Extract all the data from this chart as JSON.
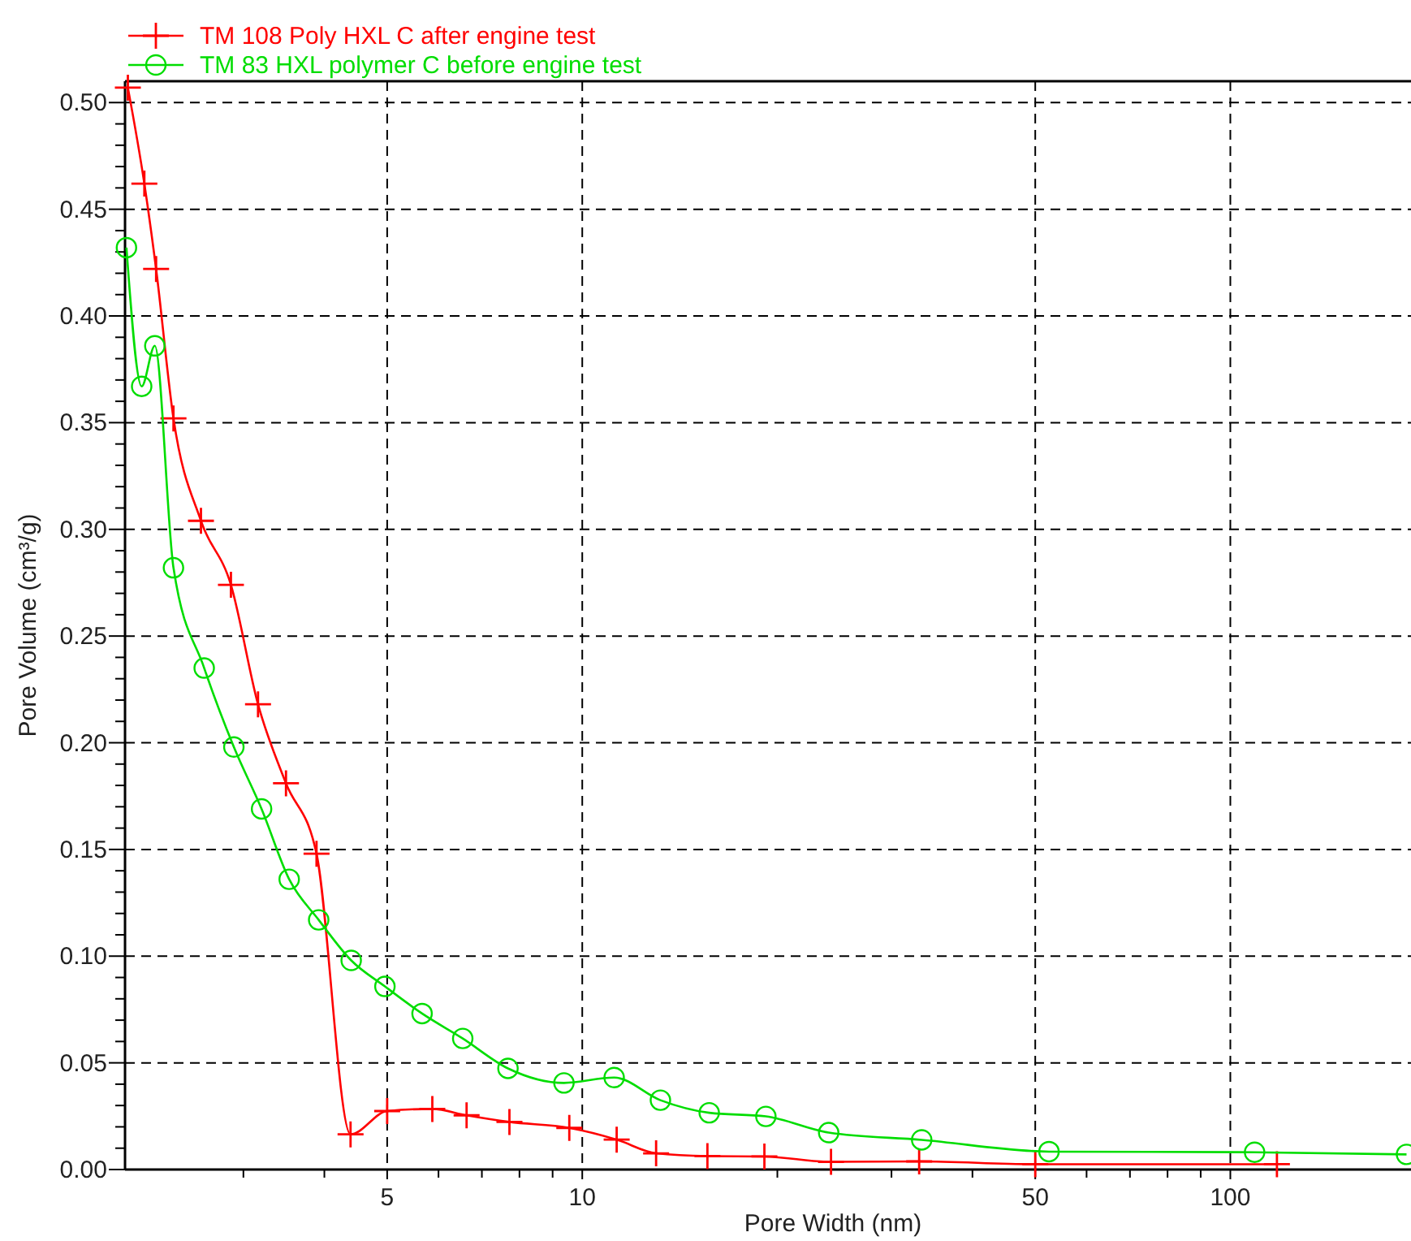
{
  "chart_data": {
    "type": "line",
    "xlabel": "Pore Width (nm)",
    "ylabel": "Pore Volume (cm³/g)",
    "log": "x",
    "grid": true,
    "legend": "top left",
    "line_style": "solid",
    "xlim": [
      1.97,
      190
    ],
    "xticks": [
      {
        "value": 3,
        "label": null
      },
      {
        "value": 4,
        "label": null
      },
      5,
      {
        "value": 6,
        "label": null
      },
      {
        "value": 7,
        "label": null
      },
      {
        "value": 8,
        "label": null
      },
      {
        "value": 9,
        "label": null
      },
      10,
      {
        "value": 20,
        "label": null
      },
      {
        "value": 30,
        "label": null
      },
      {
        "value": 40,
        "label": null
      },
      50,
      {
        "value": 60,
        "label": null
      },
      {
        "value": 70,
        "label": null
      },
      {
        "value": 80,
        "label": null
      },
      {
        "value": 90,
        "label": null
      },
      100
    ],
    "ylim": [
      0,
      0.51
    ],
    "yticks": [
      {
        "value": 0,
        "label": "0.00"
      },
      {
        "value": 0.01,
        "label": null
      },
      {
        "value": 0.02,
        "label": null
      },
      {
        "value": 0.03,
        "label": null
      },
      {
        "value": 0.04,
        "label": null
      },
      0.05,
      {
        "value": 0.06,
        "label": null
      },
      {
        "value": 0.07,
        "label": null
      },
      {
        "value": 0.08,
        "label": null
      },
      {
        "value": 0.09,
        "label": null
      },
      {
        "value": 0.1,
        "label": "0.10"
      },
      {
        "value": 0.11,
        "label": null
      },
      {
        "value": 0.12,
        "label": null
      },
      {
        "value": 0.13,
        "label": null
      },
      {
        "value": 0.14,
        "label": null
      },
      0.15,
      {
        "value": 0.16,
        "label": null
      },
      {
        "value": 0.17,
        "label": null
      },
      {
        "value": 0.18,
        "label": null
      },
      {
        "value": 0.19,
        "label": null
      },
      {
        "value": 0.2,
        "label": "0.20"
      },
      {
        "value": 0.21,
        "label": null
      },
      {
        "value": 0.22,
        "label": null
      },
      {
        "value": 0.23,
        "label": null
      },
      {
        "value": 0.24,
        "label": null
      },
      0.25,
      {
        "value": 0.26,
        "label": null
      },
      {
        "value": 0.27,
        "label": null
      },
      {
        "value": 0.28,
        "label": null
      },
      {
        "value": 0.29,
        "label": null
      },
      {
        "value": 0.3,
        "label": "0.30"
      },
      {
        "value": 0.31,
        "label": null
      },
      {
        "value": 0.32,
        "label": null
      },
      {
        "value": 0.33,
        "label": null
      },
      {
        "value": 0.34,
        "label": null
      },
      0.35,
      {
        "value": 0.36,
        "label": null
      },
      {
        "value": 0.37,
        "label": null
      },
      {
        "value": 0.38,
        "label": null
      },
      {
        "value": 0.39,
        "label": null
      },
      {
        "value": 0.4,
        "label": "0.40"
      },
      {
        "value": 0.41,
        "label": null
      },
      {
        "value": 0.42,
        "label": null
      },
      {
        "value": 0.43,
        "label": null
      },
      {
        "value": 0.44,
        "label": null
      },
      0.45,
      {
        "value": 0.46,
        "label": null
      },
      {
        "value": 0.47,
        "label": null
      },
      {
        "value": 0.48,
        "label": null
      },
      {
        "value": 0.49,
        "label": null
      },
      {
        "value": 0.5,
        "label": "0.50"
      }
    ],
    "series": [
      {
        "name": "TM 108 Poly HXL C after engine test",
        "color": "#ff0000",
        "marker": "cross",
        "x": [
          1.99,
          2.11,
          2.2,
          2.34,
          2.58,
          2.87,
          3.16,
          3.49,
          3.89,
          4.39,
          5.0,
          5.87,
          6.63,
          7.72,
          9.55,
          11.3,
          13.0,
          15.6,
          19.1,
          24.2,
          33.1,
          50,
          118
        ],
        "values": [
          0.507,
          0.462,
          0.422,
          0.352,
          0.304,
          0.274,
          0.218,
          0.181,
          0.148,
          0.0165,
          0.0274,
          0.0284,
          0.0254,
          0.0223,
          0.0195,
          0.014,
          0.0076,
          0.0063,
          0.0061,
          0.0036,
          0.0038,
          0.0025,
          0.0025
        ]
      },
      {
        "name": "TM 83 HXL polymer C before engine test",
        "color": "#00dd00",
        "marker": "circle",
        "x": [
          1.98,
          2.09,
          2.19,
          2.34,
          2.61,
          2.9,
          3.2,
          3.53,
          3.92,
          4.4,
          4.96,
          5.66,
          6.54,
          7.68,
          9.37,
          11.2,
          13.2,
          15.7,
          19.2,
          24.0,
          33.4,
          52.5,
          109,
          187
        ],
        "values": [
          0.432,
          0.367,
          0.386,
          0.282,
          0.235,
          0.198,
          0.169,
          0.136,
          0.117,
          0.098,
          0.0858,
          0.0731,
          0.0614,
          0.0474,
          0.0406,
          0.0431,
          0.0325,
          0.0266,
          0.0249,
          0.0173,
          0.0139,
          0.0084,
          0.0081,
          0.0071
        ]
      }
    ]
  }
}
